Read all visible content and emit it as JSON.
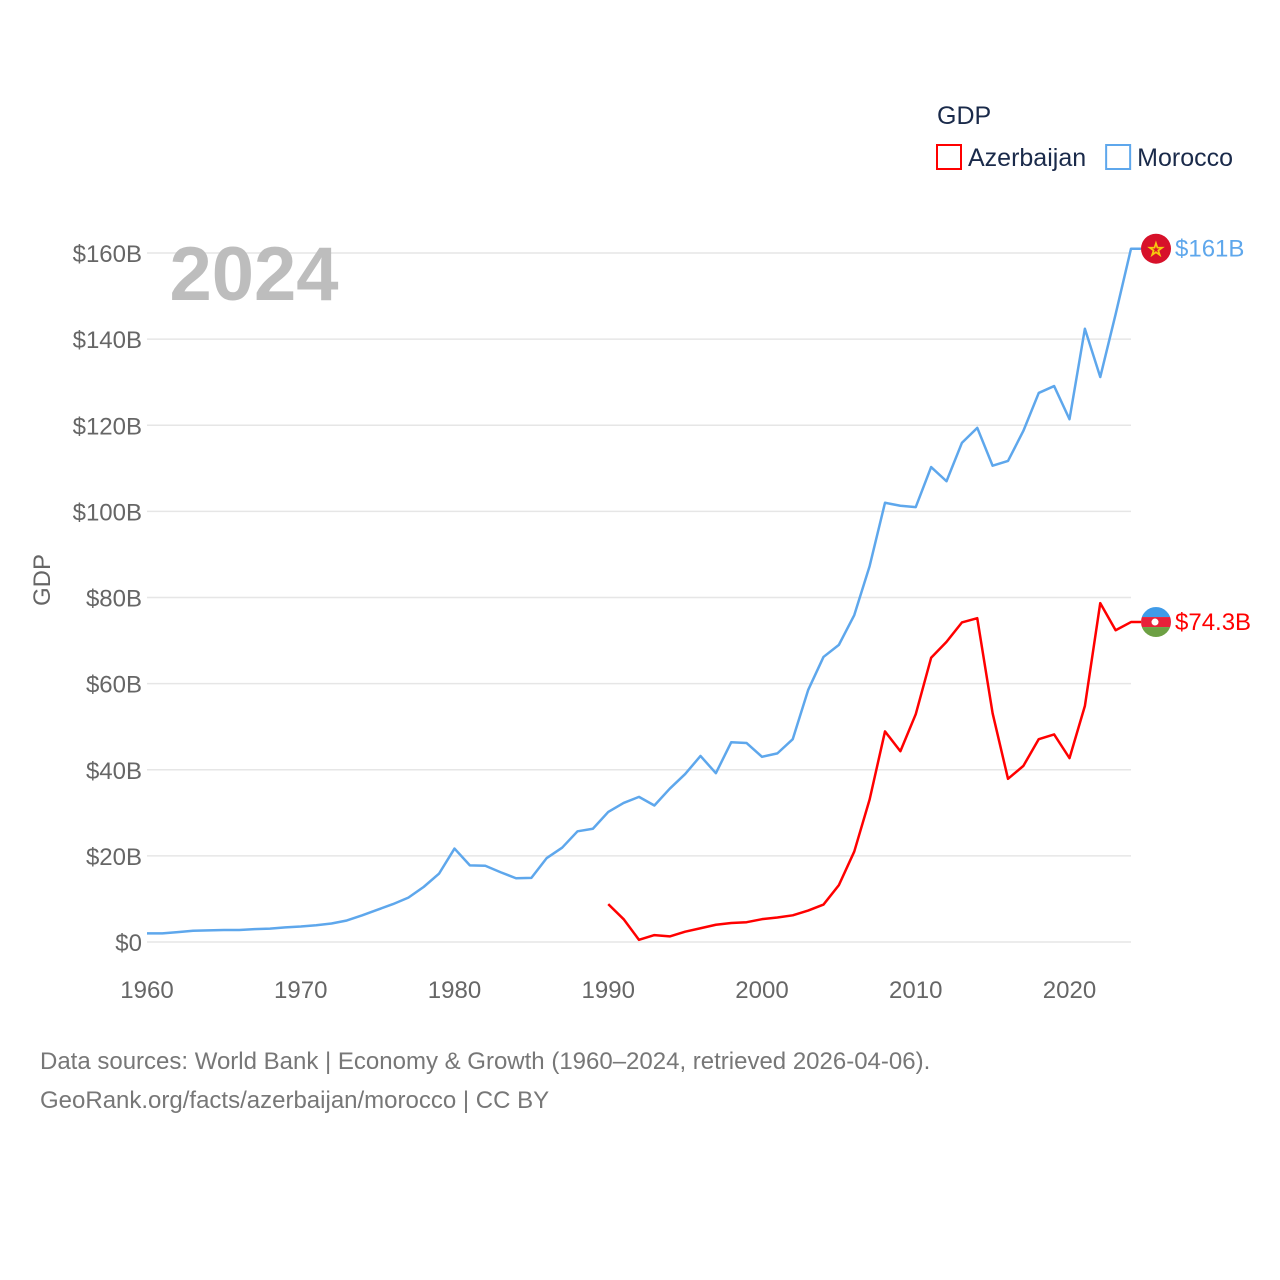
{
  "chart_data": {
    "type": "line",
    "title": "GDP",
    "year_label": "2024",
    "xlabel": "",
    "ylabel": "GDP",
    "xlim": [
      1960,
      2024
    ],
    "ylim": [
      0,
      160
    ],
    "x_ticks": [
      1960,
      1970,
      1980,
      1990,
      2000,
      2010,
      2020
    ],
    "x_tick_labels": [
      "1960",
      "1970",
      "1980",
      "1990",
      "2000",
      "2010",
      "2020"
    ],
    "y_ticks": [
      0,
      20,
      40,
      60,
      80,
      100,
      120,
      140,
      160
    ],
    "y_tick_labels": [
      "$0",
      "$20B",
      "$40B",
      "$60B",
      "$80B",
      "$100B",
      "$120B",
      "$140B",
      "$160B"
    ],
    "grid": true,
    "legend_placement": "top-right",
    "series": [
      {
        "name": "Azerbaijan",
        "color": "#ff0000",
        "end_label": "$74.3B",
        "start_year": 1990,
        "values": [
          8.8,
          5.3,
          0.5,
          1.6,
          1.3,
          2.4,
          3.2,
          4.0,
          4.4,
          4.6,
          5.3,
          5.7,
          6.2,
          7.3,
          8.7,
          13.2,
          21.0,
          33.1,
          48.9,
          44.3,
          52.9,
          66.0,
          69.7,
          74.2,
          75.2,
          53.1,
          37.9,
          40.9,
          47.1,
          48.2,
          42.7,
          54.8,
          78.7,
          72.4,
          74.3
        ]
      },
      {
        "name": "Morocco",
        "color": "#5ea7ec",
        "end_label": "$161B",
        "start_year": 1960,
        "values": [
          2.0,
          2.0,
          2.3,
          2.6,
          2.7,
          2.8,
          2.8,
          3.0,
          3.1,
          3.4,
          3.6,
          3.9,
          4.3,
          5.0,
          6.2,
          7.5,
          8.8,
          10.3,
          12.8,
          15.9,
          21.7,
          17.8,
          17.7,
          16.2,
          14.8,
          14.9,
          19.5,
          21.9,
          25.7,
          26.3,
          30.2,
          32.3,
          33.7,
          31.7,
          35.6,
          39.0,
          43.2,
          39.2,
          46.4,
          46.2,
          43.0,
          43.8,
          47.1,
          58.5,
          66.2,
          69.0,
          75.9,
          87.3,
          102.0,
          101.3,
          101.0,
          110.3,
          107.0,
          115.9,
          119.4,
          110.6,
          111.7,
          118.7,
          127.5,
          129.1,
          121.4,
          142.4,
          131.2,
          145.8,
          161.0
        ]
      }
    ]
  },
  "footer": {
    "line1": "Data sources: World Bank | Economy & Growth (1960–2024, retrieved 2026-04-06).",
    "line2": "GeoRank.org/facts/azerbaijan/morocco | CC BY"
  }
}
